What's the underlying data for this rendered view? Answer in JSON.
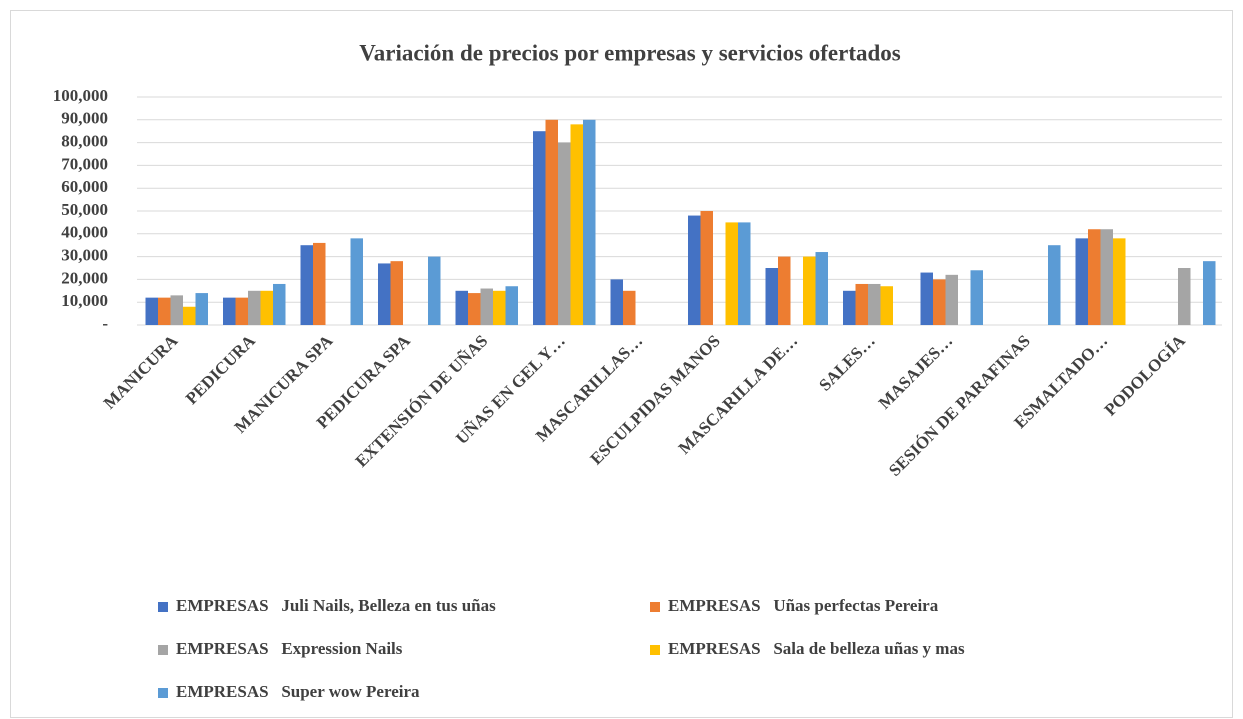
{
  "chart_data": {
    "type": "bar",
    "title": "Variación de precios por empresas y servicios ofertados",
    "categories": [
      "MANICURA",
      "PEDICURA",
      "MANICURA SPA",
      "PEDICURA SPA",
      "EXTENSIÓN DE UÑAS",
      "UÑAS EN GEL Y…",
      "MASCARILLAS…",
      "ESCULPIDAS MANOS",
      "MASCARILLA DE…",
      "SALES…",
      "MASAJES…",
      "SESIÓN DE PARAFINAS",
      "ESMALTADO…",
      "PODOLOGÍA"
    ],
    "series": [
      {
        "name": "EMPRESAS   Juli Nails, Belleza en tus uñas",
        "color": "#4472c4",
        "values": [
          12000,
          12000,
          35000,
          27000,
          15000,
          85000,
          20000,
          48000,
          25000,
          15000,
          23000,
          null,
          38000,
          null
        ]
      },
      {
        "name": "EMPRESAS   Uñas perfectas Pereira",
        "color": "#ed7d31",
        "values": [
          12000,
          12000,
          36000,
          28000,
          14000,
          90000,
          15000,
          50000,
          30000,
          18000,
          20000,
          null,
          42000,
          null
        ]
      },
      {
        "name": "EMPRESAS   Expression Nails",
        "color": "#a5a5a5",
        "values": [
          13000,
          15000,
          null,
          null,
          16000,
          80000,
          null,
          null,
          null,
          18000,
          22000,
          null,
          42000,
          25000
        ]
      },
      {
        "name": "EMPRESAS   Sala de belleza uñas y mas",
        "color": "#ffc000",
        "values": [
          8000,
          15000,
          null,
          null,
          15000,
          88000,
          null,
          45000,
          30000,
          17000,
          null,
          null,
          38000,
          null
        ]
      },
      {
        "name": "EMPRESAS   Super wow Pereira",
        "color": "#5b9bd5",
        "values": [
          14000,
          18000,
          38000,
          30000,
          17000,
          90000,
          null,
          45000,
          32000,
          null,
          24000,
          35000,
          null,
          28000
        ]
      }
    ],
    "ylim": [
      0,
      100000
    ],
    "yticks": [
      {
        "value": 0,
        "label": "-"
      },
      {
        "value": 10000,
        "label": "10,000"
      },
      {
        "value": 20000,
        "label": "20,000"
      },
      {
        "value": 30000,
        "label": "30,000"
      },
      {
        "value": 40000,
        "label": "40,000"
      },
      {
        "value": 50000,
        "label": "50,000"
      },
      {
        "value": 60000,
        "label": "60,000"
      },
      {
        "value": 70000,
        "label": "70,000"
      },
      {
        "value": 80000,
        "label": "80,000"
      },
      {
        "value": 90000,
        "label": "90,000"
      },
      {
        "value": 100000,
        "label": "100,000"
      }
    ],
    "grid": true,
    "legend": "bottom"
  }
}
